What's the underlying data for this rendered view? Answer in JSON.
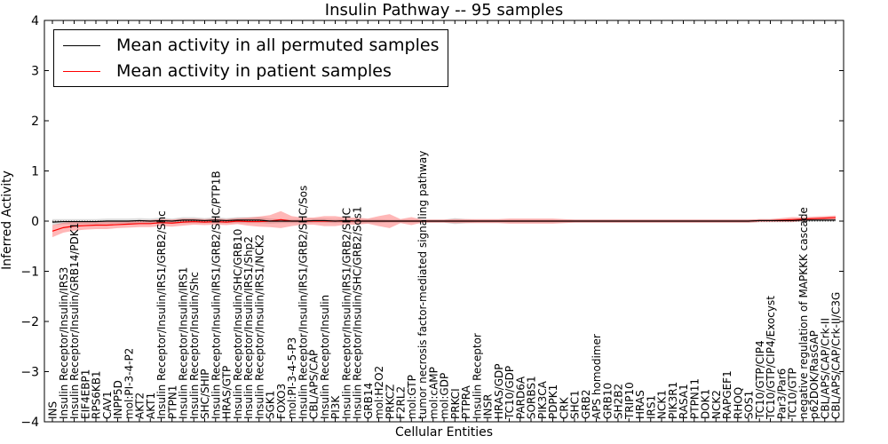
{
  "chart_data": {
    "type": "line",
    "title": "Insulin Pathway -- 95 samples",
    "xlabel": "Cellular Entities",
    "ylabel": "Inferred Activity",
    "ylim": [
      -4,
      4
    ],
    "yticks": [
      -4,
      -3,
      -2,
      -1,
      0,
      1,
      2,
      3,
      4
    ],
    "legend": {
      "position": "top-left",
      "entries": [
        {
          "name": "Mean activity in all permuted samples",
          "color": "#000000"
        },
        {
          "name": "Mean activity in patient samples",
          "color": "#ff0000"
        }
      ]
    },
    "categories": [
      "INS",
      "Insulin Receptor/Insulin/IRS3",
      "Insulin Receptor/Insulin/GRB14/PDK1",
      "EIF4EBP1",
      "RPS6KB1",
      "CAV1",
      "INPP5D",
      "mol:PI-3-4-P2",
      "AKT2",
      "AKT1",
      "Insulin Receptor/Insulin/IRS1/GRB2/Shc",
      "PTPN1",
      "Insulin Receptor/Insulin/IRS1",
      "Insulin Receptor/Insulin/Shc",
      "SHC/SHIP",
      "Insulin Receptor/Insulin/IRS1/GRB2/SHC/PTP1B",
      "HRAS/GTP",
      "Insulin Receptor/Insulin/SHC/GRB10",
      "Insulin Receptor/Insulin/IRS1/Shp2",
      "Insulin Receptor/Insulin/IRS1/NCK2",
      "SGK1",
      "FOXO3",
      "mol:PI-3-4-5-P3",
      "Insulin Receptor/Insulin/IRS1/GRB2/SHC/Sos",
      "CBL/APS/CAP",
      "Insulin Receptor/Insulin",
      "PI3K",
      "Insulin Receptor/Insulin/IRS1/GRB2/SHC",
      "Insulin Receptor/Insulin/SHC/GRB2/Sos1",
      "GRB14",
      "mol:H2O2",
      "PRKCZ",
      "F2RL2",
      "mol:GTP",
      "tumor necrosis factor-mediated signaling pathway",
      "mol:cAMP",
      "mol:GDP",
      "PRKCI",
      "PTPRA",
      "Insulin Receptor",
      "INSR",
      "HRAS/GDP",
      "TC10/GDP",
      "PARD6A",
      "SORBS1",
      "PIK3CA",
      "PDPK1",
      "CRK",
      "SHC1",
      "GRB2",
      "APS homodimer",
      "GRB10",
      "SH2B2",
      "TRIP10",
      "HRAS",
      "IRS1",
      "NCK1",
      "PIK3R1",
      "RASA1",
      "PTPN11",
      "DOK1",
      "NCK2",
      "RAPGEF1",
      "RHOQ",
      "SOS1",
      "TC10/GTP/CIP4",
      "TC10/GTP/CIP4/Exocyst",
      "Par3/Par6",
      "TC10/GTP",
      "negative regulation of MAPKKK cascade",
      "p62DOK/RasGAP",
      "CBL/APS/CAP/Crk-II",
      "CBL/APS/CAP/Crk-II/C3G"
    ],
    "series": [
      {
        "name": "Mean activity in all permuted samples",
        "color": "#000000",
        "values": [
          -0.02,
          -0.01,
          -0.01,
          -0.01,
          -0.01,
          0.0,
          0.0,
          0.0,
          0.01,
          0.0,
          0.01,
          0.0,
          0.02,
          0.02,
          0.01,
          0.02,
          0.01,
          0.02,
          0.02,
          0.02,
          0.0,
          0.0,
          0.0,
          0.0,
          0.01,
          0.01,
          0.0,
          0.01,
          0.0,
          0.0,
          0.0,
          0.0,
          0.0,
          0.0,
          0.0,
          0.0,
          0.0,
          0.0,
          0.0,
          0.0,
          0.0,
          0.0,
          0.0,
          0.0,
          0.0,
          0.0,
          0.0,
          0.0,
          0.0,
          0.0,
          0.0,
          0.0,
          0.0,
          0.0,
          0.0,
          0.0,
          0.0,
          0.0,
          0.0,
          0.0,
          0.0,
          0.0,
          0.0,
          0.0,
          0.0,
          0.01,
          0.01,
          0.01,
          0.01,
          0.02,
          0.02,
          0.02,
          0.02
        ],
        "band": [
          0.06,
          0.05,
          0.05,
          0.05,
          0.05,
          0.05,
          0.05,
          0.05,
          0.05,
          0.05,
          0.06,
          0.05,
          0.06,
          0.06,
          0.05,
          0.06,
          0.05,
          0.06,
          0.06,
          0.06,
          0.05,
          0.04,
          0.04,
          0.04,
          0.04,
          0.04,
          0.04,
          0.04,
          0.04,
          0.04,
          0.04,
          0.03,
          0.03,
          0.03,
          0.03,
          0.03,
          0.03,
          0.06,
          0.04,
          0.03,
          0.03,
          0.03,
          0.03,
          0.03,
          0.03,
          0.03,
          0.03,
          0.03,
          0.03,
          0.03,
          0.03,
          0.03,
          0.03,
          0.03,
          0.03,
          0.03,
          0.03,
          0.03,
          0.03,
          0.03,
          0.03,
          0.03,
          0.03,
          0.03,
          0.03,
          0.03,
          0.03,
          0.03,
          0.03,
          0.03,
          0.03,
          0.03,
          0.03
        ]
      },
      {
        "name": "Mean activity in patient samples",
        "color": "#ff0000",
        "values": [
          -0.2,
          -0.13,
          -0.1,
          -0.09,
          -0.08,
          -0.08,
          -0.07,
          -0.06,
          -0.05,
          -0.05,
          -0.03,
          -0.04,
          -0.02,
          -0.01,
          -0.02,
          -0.01,
          -0.02,
          0.0,
          -0.01,
          -0.01,
          0.0,
          0.03,
          0.0,
          0.0,
          0.0,
          0.0,
          0.0,
          0.0,
          0.0,
          0.0,
          0.0,
          0.0,
          0.0,
          0.0,
          0.0,
          0.0,
          0.0,
          0.0,
          0.0,
          0.0,
          0.0,
          0.0,
          0.0,
          0.0,
          0.0,
          0.0,
          0.0,
          0.0,
          0.0,
          0.0,
          0.0,
          0.0,
          0.0,
          0.0,
          0.0,
          0.0,
          0.0,
          0.0,
          0.0,
          0.0,
          0.0,
          0.0,
          0.0,
          0.0,
          0.0,
          0.01,
          0.01,
          0.02,
          0.03,
          0.04,
          0.05,
          0.06,
          0.07
        ],
        "band": [
          0.12,
          0.1,
          0.09,
          0.08,
          0.08,
          0.08,
          0.07,
          0.07,
          0.07,
          0.07,
          0.07,
          0.07,
          0.07,
          0.06,
          0.06,
          0.06,
          0.06,
          0.06,
          0.08,
          0.1,
          0.12,
          0.17,
          0.1,
          0.07,
          0.07,
          0.1,
          0.1,
          0.07,
          0.07,
          0.05,
          0.1,
          0.14,
          0.04,
          0.08,
          0.03,
          0.03,
          0.03,
          0.04,
          0.04,
          0.04,
          0.04,
          0.04,
          0.05,
          0.05,
          0.05,
          0.05,
          0.05,
          0.04,
          0.03,
          0.03,
          0.03,
          0.03,
          0.03,
          0.03,
          0.03,
          0.03,
          0.03,
          0.03,
          0.03,
          0.03,
          0.03,
          0.03,
          0.03,
          0.03,
          0.03,
          0.03,
          0.03,
          0.04,
          0.05,
          0.04,
          0.04,
          0.04,
          0.04
        ]
      }
    ]
  }
}
